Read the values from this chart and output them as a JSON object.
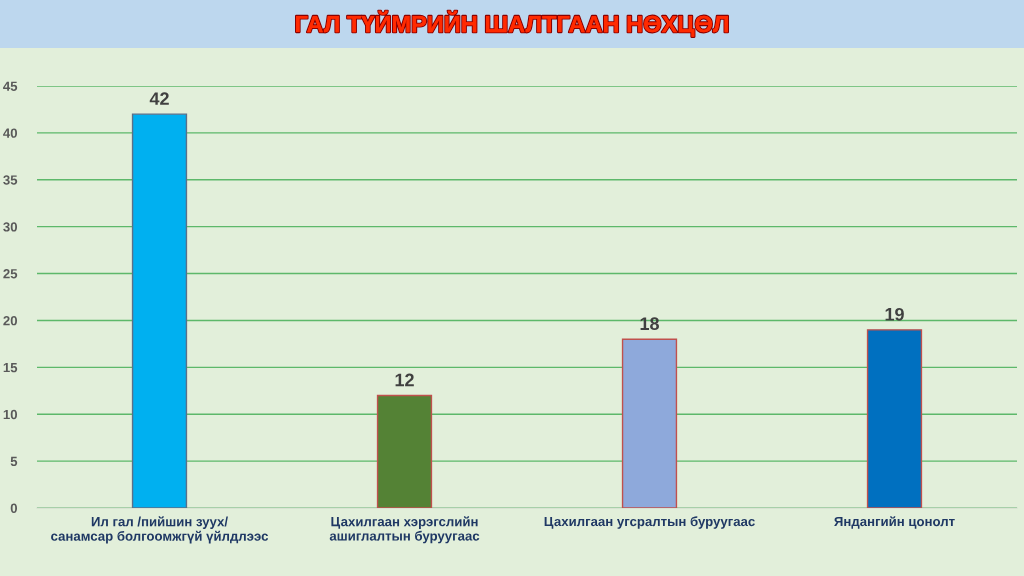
{
  "chart_data": {
    "type": "bar",
    "title": "ГАЛ ТҮЙМРИЙН ШАЛТГААН НӨХЦӨЛ",
    "categories": [
      "Ил гал /пийшин зуух/\nсанамсар болгоомжгүй үйлдлээс",
      "Цахилгаан хэрэгслийн\nашиглалтын буруугаас",
      "Цахилгаан угсралтын буруугаас",
      "Яндангийн цонолт"
    ],
    "values": [
      42,
      12,
      18,
      19
    ],
    "colors": [
      "#00B0F0",
      "#548235",
      "#8EA9DB",
      "#0070C0"
    ],
    "ylim": [
      0,
      45
    ],
    "yticks": [
      0,
      5,
      10,
      15,
      20,
      25,
      30,
      35,
      40,
      45
    ],
    "grid": "y",
    "data_labels": true,
    "legend": false
  }
}
